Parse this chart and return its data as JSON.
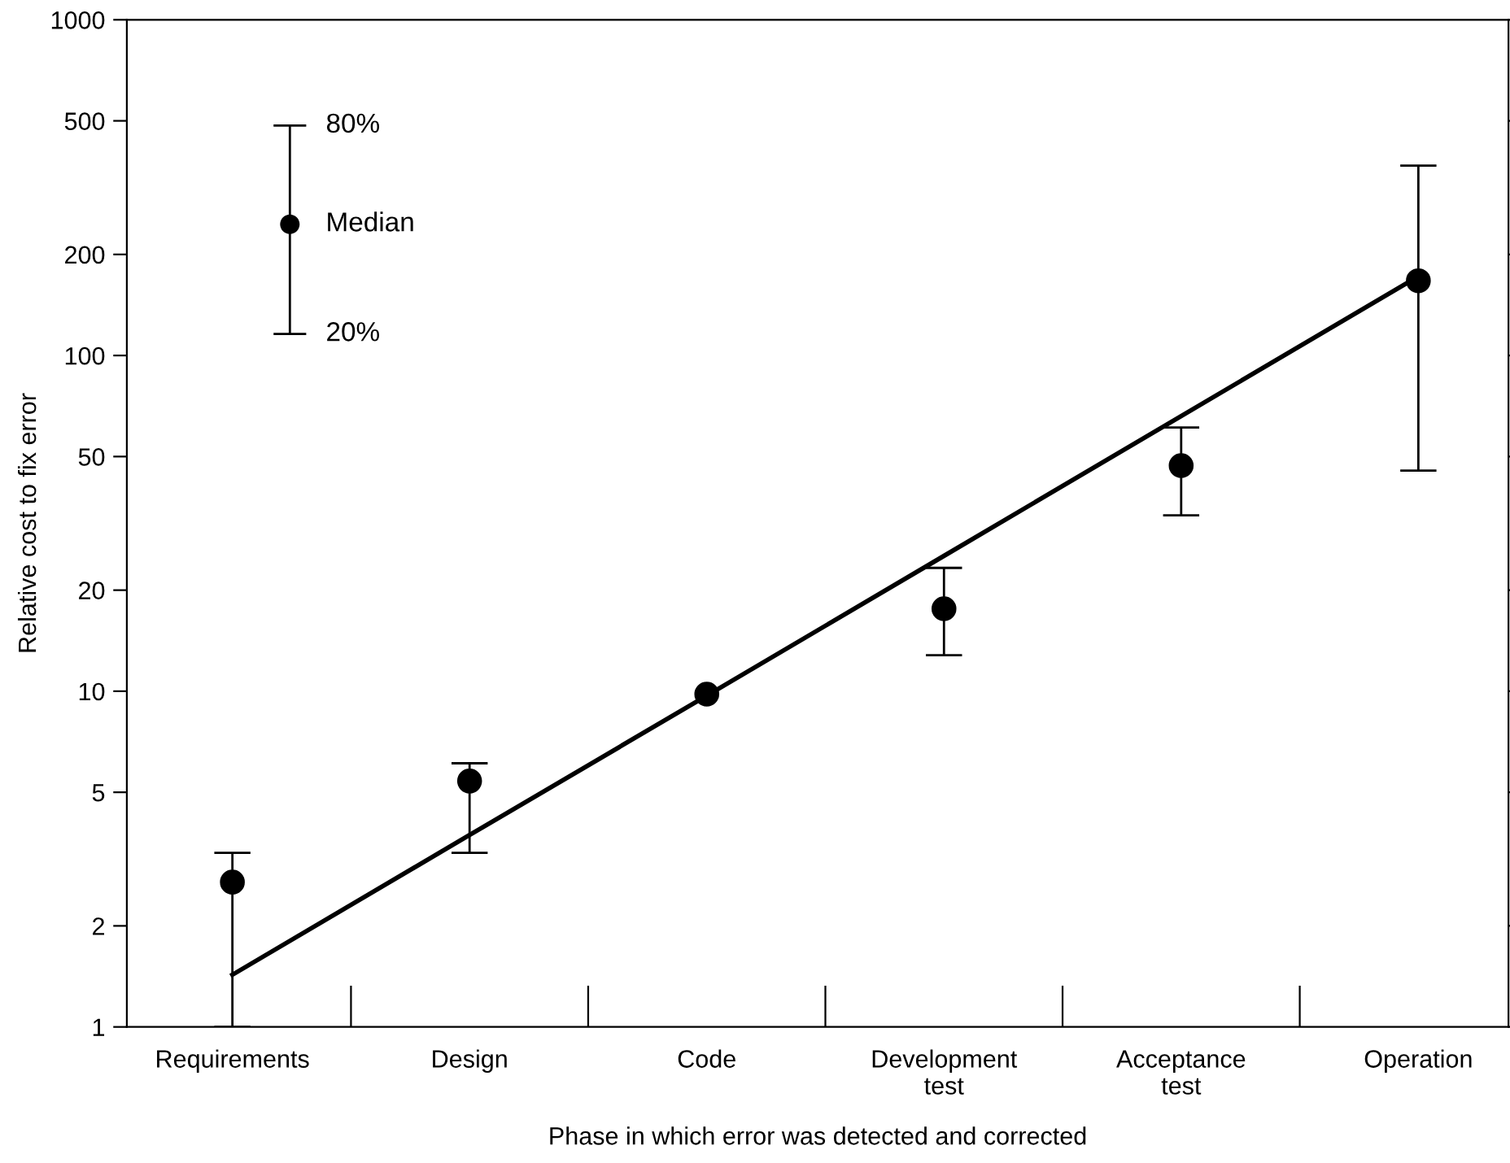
{
  "chart_data": {
    "type": "scatter",
    "xlabel": "Phase in which error was detected and corrected",
    "ylabel": "Relative cost to fix error",
    "categories": [
      "Requirements",
      "Design",
      "Code",
      "Development\ntest",
      "Acceptance\ntest",
      "Operation"
    ],
    "series": [
      {
        "color": "#000000",
        "marker": "circle",
        "values": [
          2.7,
          5.4,
          9.8,
          17.6,
          47,
          167
        ],
        "errors": [
          [
            1,
            3.3
          ],
          [
            3.3,
            6.1
          ],
          null,
          [
            12.8,
            23.3
          ],
          [
            33.4,
            61
          ],
          [
            45.4,
            368
          ]
        ]
      },
      {
        "type": "line",
        "color": "#000000",
        "marker": "none",
        "values": [
          1.43,
          3.73,
          9.7,
          25.3,
          66,
          172
        ]
      }
    ],
    "annotations": [
      "80%",
      "Median",
      "20%"
    ],
    "log": "y",
    "ylim": [
      1,
      1000
    ],
    "yticks": [
      1,
      2,
      5,
      10,
      20,
      50,
      100,
      200,
      500,
      1000
    ],
    "grid": false,
    "line_style": "solid"
  }
}
